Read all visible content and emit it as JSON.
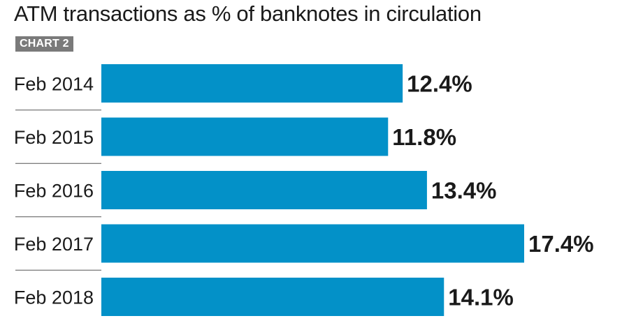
{
  "header": {
    "title": "ATM transactions as % of banknotes in circulation",
    "badge": "CHART 2"
  },
  "colors": {
    "bar": "#0391c8",
    "text": "#1a1a1a",
    "divider": "#555555",
    "badge_bg": "#7a7a7a"
  },
  "chart_data": {
    "type": "bar",
    "orientation": "horizontal",
    "title": "ATM transactions as % of banknotes in circulation",
    "subtitle": "CHART 2",
    "categories": [
      "Feb 2014",
      "Feb 2015",
      "Feb 2016",
      "Feb 2017",
      "Feb 2018"
    ],
    "values": [
      12.4,
      11.8,
      13.4,
      17.4,
      14.1
    ],
    "value_labels": [
      "12.4%",
      "11.8%",
      "13.4%",
      "17.4%",
      "14.1%"
    ],
    "unit": "%",
    "xlim": [
      0,
      17.4
    ],
    "grid": false,
    "legend": "none"
  }
}
